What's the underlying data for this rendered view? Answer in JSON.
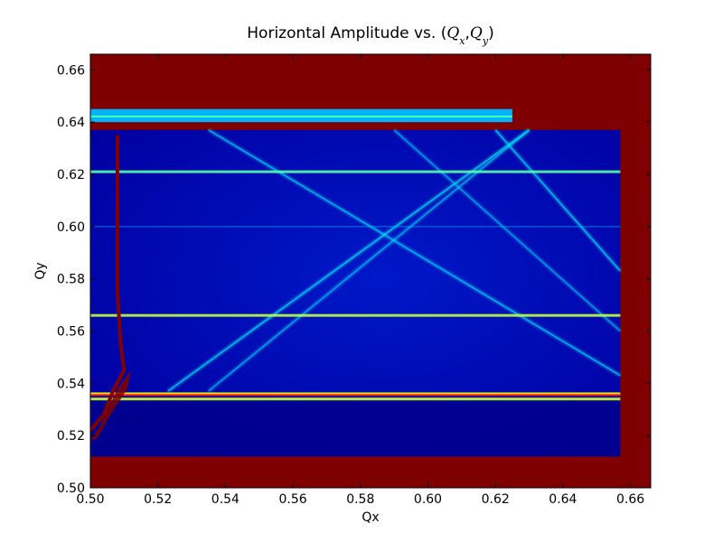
{
  "chart_data": {
    "type": "heatmap",
    "title": {
      "prefix": "Horizontal Amplitude vs. (",
      "sym1": "Q",
      "sub1": "x",
      "sep": ",",
      "sym2": "Q",
      "sub2": "y",
      "suffix": ")"
    },
    "xlabel": "Qx",
    "ylabel": "Qy",
    "xlim": [
      0.5,
      0.666
    ],
    "ylim": [
      0.5,
      0.666
    ],
    "xticks": [
      "0.50",
      "0.52",
      "0.54",
      "0.56",
      "0.58",
      "0.60",
      "0.62",
      "0.64",
      "0.66"
    ],
    "yticks": [
      "0.50",
      "0.52",
      "0.54",
      "0.56",
      "0.58",
      "0.60",
      "0.62",
      "0.64",
      "0.66"
    ],
    "grid": false,
    "colormap": "jet",
    "background_value_color": "#7f0000",
    "field_base_color": "#0000a8",
    "data_region": {
      "qx": [
        0.5,
        0.657
      ],
      "qy": [
        0.512,
        0.637
      ]
    },
    "upper_band": {
      "qx": [
        0.5,
        0.625
      ],
      "qy": [
        0.64,
        0.645
      ]
    },
    "horizontal_resonances": [
      {
        "qy": 0.621,
        "intensity": 0.45
      },
      {
        "qy": 0.566,
        "intensity": 0.75
      },
      {
        "qy": 0.536,
        "intensity": 0.9
      },
      {
        "qy": 0.534,
        "intensity": 0.8
      }
    ],
    "diagonal_resonances": [
      {
        "from": [
          0.523,
          0.537
        ],
        "to": [
          0.63,
          0.637
        ],
        "intensity": 0.55
      },
      {
        "from": [
          0.535,
          0.537
        ],
        "to": [
          0.63,
          0.637
        ],
        "intensity": 0.35
      },
      {
        "from": [
          0.535,
          0.637
        ],
        "to": [
          0.657,
          0.543
        ],
        "intensity": 0.45
      },
      {
        "from": [
          0.62,
          0.637
        ],
        "to": [
          0.657,
          0.583
        ],
        "intensity": 0.5
      },
      {
        "from": [
          0.59,
          0.637
        ],
        "to": [
          0.657,
          0.56
        ],
        "intensity": 0.3
      },
      {
        "from": [
          0.5,
          0.6
        ],
        "to": [
          0.657,
          0.6
        ],
        "intensity": 0.2
      }
    ],
    "chaotic_boundary": {
      "color": "#7f0000",
      "points": [
        [
          0.5,
          0.522
        ],
        [
          0.504,
          0.528
        ],
        [
          0.507,
          0.538
        ],
        [
          0.51,
          0.545
        ],
        [
          0.509,
          0.555
        ],
        [
          0.508,
          0.575
        ],
        [
          0.508,
          0.6
        ],
        [
          0.508,
          0.635
        ]
      ]
    }
  }
}
